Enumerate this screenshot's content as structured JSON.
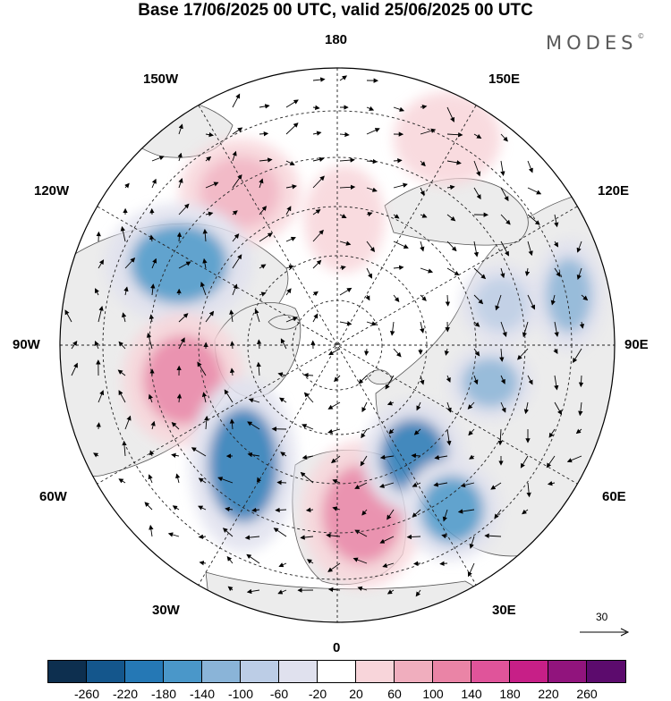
{
  "header": {
    "title": "Base 17/06/2025 00 UTC, valid 25/06/2025 00 UTC",
    "brand": "MODES",
    "brand_mark": "©"
  },
  "map": {
    "projection": "north-polar-stereographic",
    "land_color": "#ececec",
    "ocean_color": "#ffffff",
    "coastline_color": "#555555",
    "grid_style": "dashed",
    "longitude_labels": {
      "top": "180",
      "top_left": "150W",
      "top_right": "150E",
      "upper_left": "120W",
      "upper_right": "120E",
      "left": "90W",
      "right": "90E",
      "lower_left": "60W",
      "lower_right": "60E",
      "bottom_left": "30W",
      "bottom_right": "30E",
      "bottom": "0"
    },
    "anomaly_centers": [
      {
        "sign": "positive",
        "level": 100,
        "region": "North Pacific near 160W"
      },
      {
        "sign": "negative",
        "level": -140,
        "region": "Northeast Pacific / Alaska"
      },
      {
        "sign": "positive",
        "level": 140,
        "region": "Central North America"
      },
      {
        "sign": "negative",
        "level": -180,
        "region": "Western North Atlantic"
      },
      {
        "sign": "positive",
        "level": 140,
        "region": "Western Europe"
      },
      {
        "sign": "negative",
        "level": -180,
        "region": "Scandinavia / Barents"
      },
      {
        "sign": "negative",
        "level": -140,
        "region": "Eastern Europe"
      },
      {
        "sign": "negative",
        "level": -100,
        "region": "Central Siberia"
      },
      {
        "sign": "negative",
        "level": -100,
        "region": "East Siberia"
      },
      {
        "sign": "positive",
        "level": 60,
        "region": "Bering Sea"
      },
      {
        "sign": "positive",
        "level": 60,
        "region": "Arctic Ocean near 180"
      },
      {
        "sign": "negative",
        "level": -60,
        "region": "Central Asia"
      }
    ]
  },
  "vector_scale": {
    "value": "30",
    "unit_arrow": "right-arrow-icon"
  },
  "colorbar": {
    "colors": [
      "#0d2f4f",
      "#14568c",
      "#2578b5",
      "#4a97c9",
      "#8ab4d8",
      "#bccde6",
      "#e0e1ee",
      "#ffffff",
      "#f8d5da",
      "#f0aebe",
      "#ea84a6",
      "#e0549a",
      "#c71f87",
      "#91147d",
      "#5c0b6d"
    ],
    "ticks": [
      "-260",
      "-220",
      "-180",
      "-140",
      "-100",
      "-60",
      "-20",
      "20",
      "60",
      "100",
      "140",
      "180",
      "220",
      "260"
    ]
  }
}
